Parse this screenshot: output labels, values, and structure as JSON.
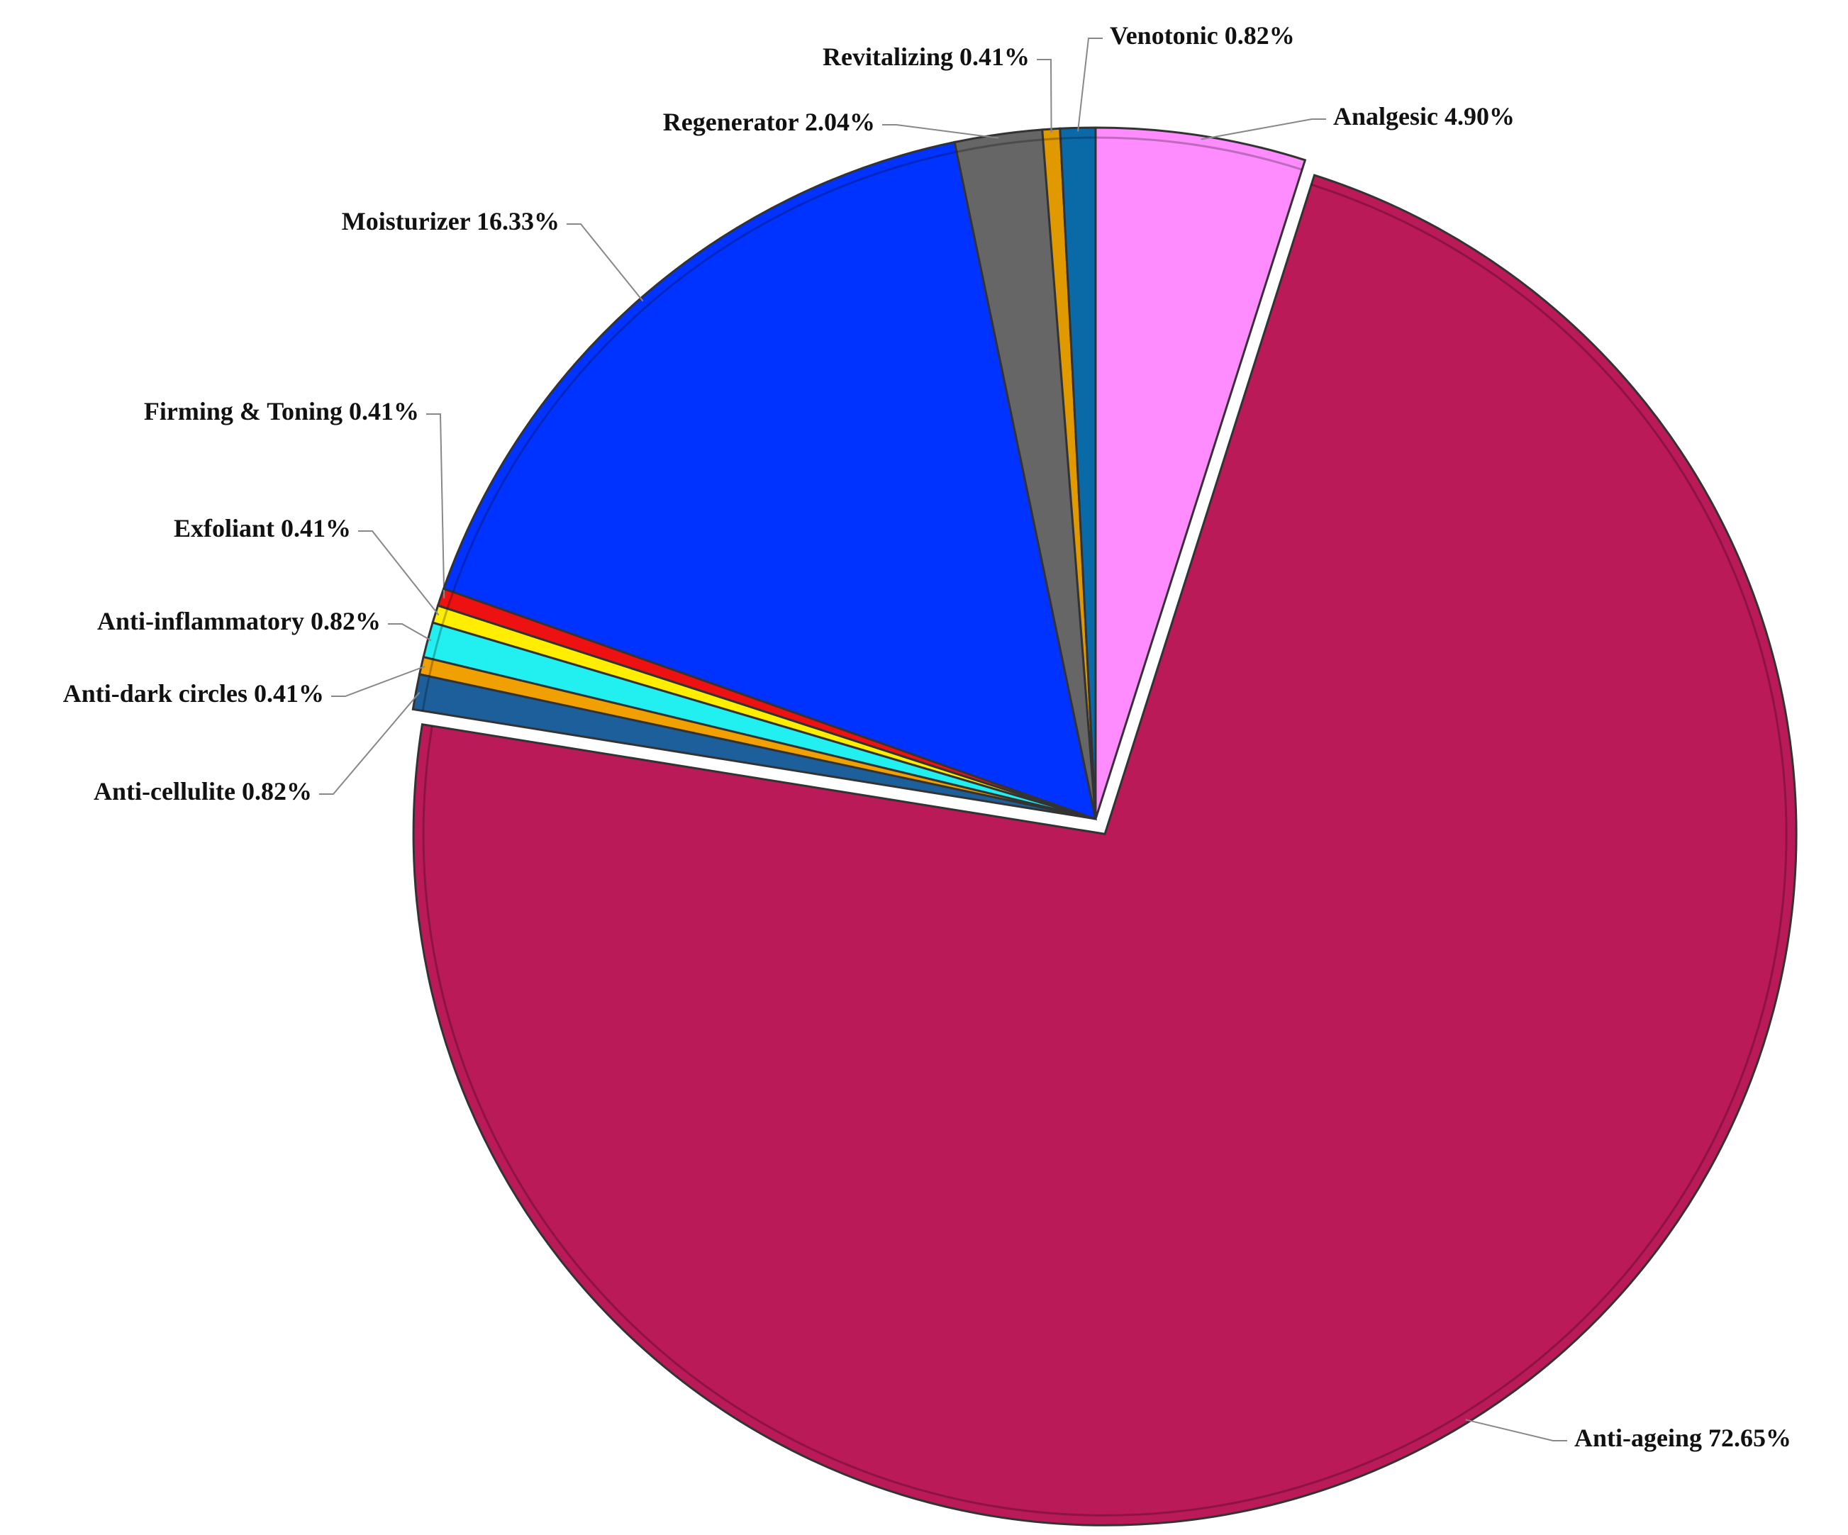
{
  "chart_data": {
    "type": "pie",
    "categories": [
      "Analgesic",
      "Anti-ageing",
      "Anti-cellulite",
      "Anti-dark circles",
      "Anti-inflammatory",
      "Exfoliant",
      "Firming & Toning",
      "Moisturizer",
      "Regenerator",
      "Revitalizing",
      "Venotonic"
    ],
    "values": [
      4.9,
      72.65,
      0.82,
      0.41,
      0.82,
      0.41,
      0.41,
      16.33,
      2.04,
      0.41,
      0.82
    ],
    "value_labels": [
      "4.90%",
      "72.65%",
      "0.82%",
      "0.41%",
      "0.82%",
      "0.41%",
      "0.41%",
      "16.33%",
      "2.04%",
      "0.41%",
      "0.82%"
    ],
    "colors": [
      "#ff8cff",
      "#bb1a58",
      "#1d5f9a",
      "#f0a000",
      "#22f0f0",
      "#ffee00",
      "#ee1111",
      "#0033ff",
      "#666666",
      "#e09a00",
      "#0a6aa8"
    ]
  }
}
